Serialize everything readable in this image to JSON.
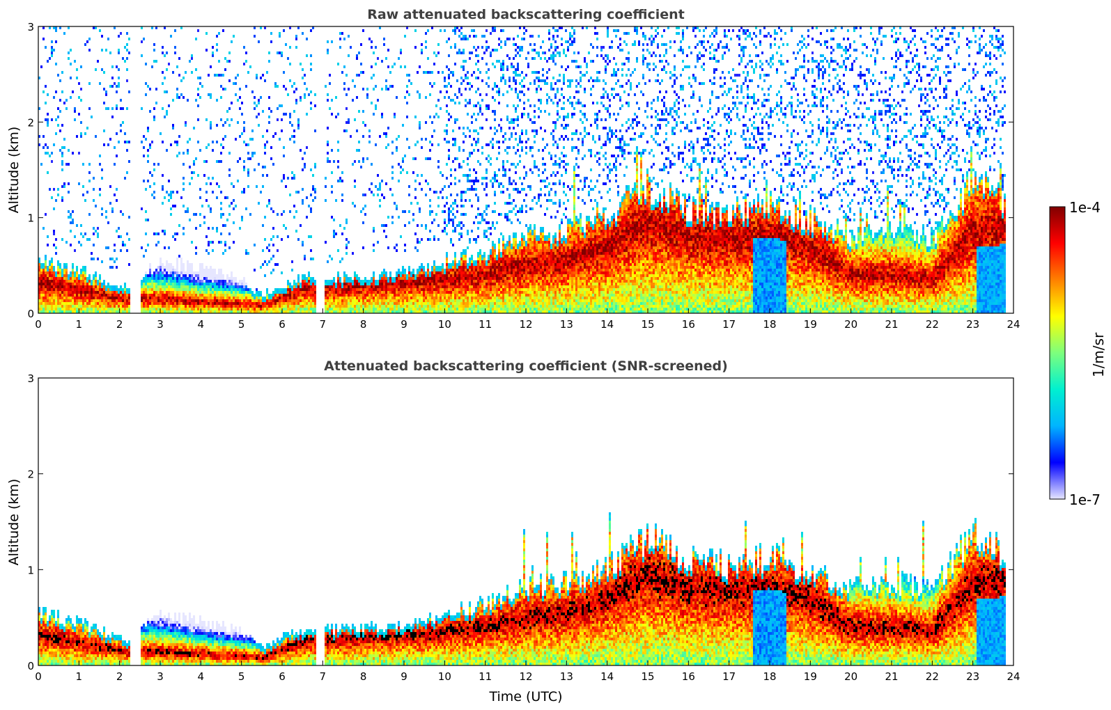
{
  "chart_data": [
    {
      "type": "heatmap",
      "title": "Raw attenuated backscattering coefficient",
      "xlabel": "",
      "ylabel": "Altitude (km)",
      "xlim": [
        0,
        24
      ],
      "ylim": [
        0,
        3
      ],
      "xticks": [
        "0",
        "1",
        "2",
        "3",
        "4",
        "5",
        "6",
        "7",
        "8",
        "9",
        "10",
        "11",
        "12",
        "13",
        "14",
        "15",
        "16",
        "17",
        "18",
        "19",
        "20",
        "21",
        "22",
        "23",
        "24"
      ],
      "yticks": [
        "0",
        "1",
        "2",
        "3"
      ],
      "variant": "raw",
      "layer_top_km": [
        {
          "t": 0.0,
          "top": 0.55,
          "core": 0.32
        },
        {
          "t": 1.0,
          "top": 0.45,
          "core": 0.24
        },
        {
          "t": 2.2,
          "top": 0.28,
          "core": 0.14
        },
        {
          "t": 3.0,
          "top": 0.55,
          "core": 0.15
        },
        {
          "t": 4.0,
          "top": 0.48,
          "core": 0.12
        },
        {
          "t": 5.0,
          "top": 0.35,
          "core": 0.1
        },
        {
          "t": 5.5,
          "top": 0.2,
          "core": 0.08
        },
        {
          "t": 6.5,
          "top": 0.38,
          "core": 0.25
        },
        {
          "t": 7.5,
          "top": 0.38,
          "core": 0.28
        },
        {
          "t": 9.0,
          "top": 0.42,
          "core": 0.32
        },
        {
          "t": 10.0,
          "top": 0.55,
          "core": 0.35
        },
        {
          "t": 11.0,
          "top": 0.65,
          "core": 0.4
        },
        {
          "t": 12.0,
          "top": 0.82,
          "core": 0.5
        },
        {
          "t": 13.0,
          "top": 0.88,
          "core": 0.55
        },
        {
          "t": 14.0,
          "top": 1.05,
          "core": 0.7
        },
        {
          "t": 15.0,
          "top": 1.35,
          "core": 0.95
        },
        {
          "t": 16.0,
          "top": 1.1,
          "core": 0.8
        },
        {
          "t": 17.0,
          "top": 1.05,
          "core": 0.78
        },
        {
          "t": 18.0,
          "top": 1.15,
          "core": 0.8
        },
        {
          "t": 19.0,
          "top": 1.0,
          "core": 0.7
        },
        {
          "t": 20.0,
          "top": 0.8,
          "core": 0.4
        },
        {
          "t": 21.0,
          "top": 0.88,
          "core": 0.4
        },
        {
          "t": 22.0,
          "top": 0.8,
          "core": 0.35
        },
        {
          "t": 23.0,
          "top": 1.4,
          "core": 0.85
        },
        {
          "t": 23.8,
          "top": 1.15,
          "core": 0.9
        }
      ],
      "gaps_utc": [
        [
          2.25,
          2.52
        ],
        [
          6.85,
          7.05
        ]
      ],
      "data_end_utc": 23.8
    },
    {
      "type": "heatmap",
      "title": "Attenuated backscattering coefficient (SNR-screened)",
      "xlabel": "Time (UTC)",
      "ylabel": "Altitude (km)",
      "xlim": [
        0,
        24
      ],
      "ylim": [
        0,
        3
      ],
      "xticks": [
        "0",
        "1",
        "2",
        "3",
        "4",
        "5",
        "6",
        "7",
        "8",
        "9",
        "10",
        "11",
        "12",
        "13",
        "14",
        "15",
        "16",
        "17",
        "18",
        "19",
        "20",
        "21",
        "22",
        "23",
        "24"
      ],
      "yticks": [
        "0",
        "1",
        "2",
        "3"
      ],
      "variant": "screened"
    }
  ],
  "colorbar": {
    "label": "1/m/sr",
    "max_label": "1e-4",
    "min_label": "1e-7",
    "colors": [
      "#e6e6ff",
      "#0000ff",
      "#00b4ff",
      "#00f0d0",
      "#7dff7d",
      "#ffff00",
      "#ff8000",
      "#ff0000",
      "#800000"
    ]
  }
}
